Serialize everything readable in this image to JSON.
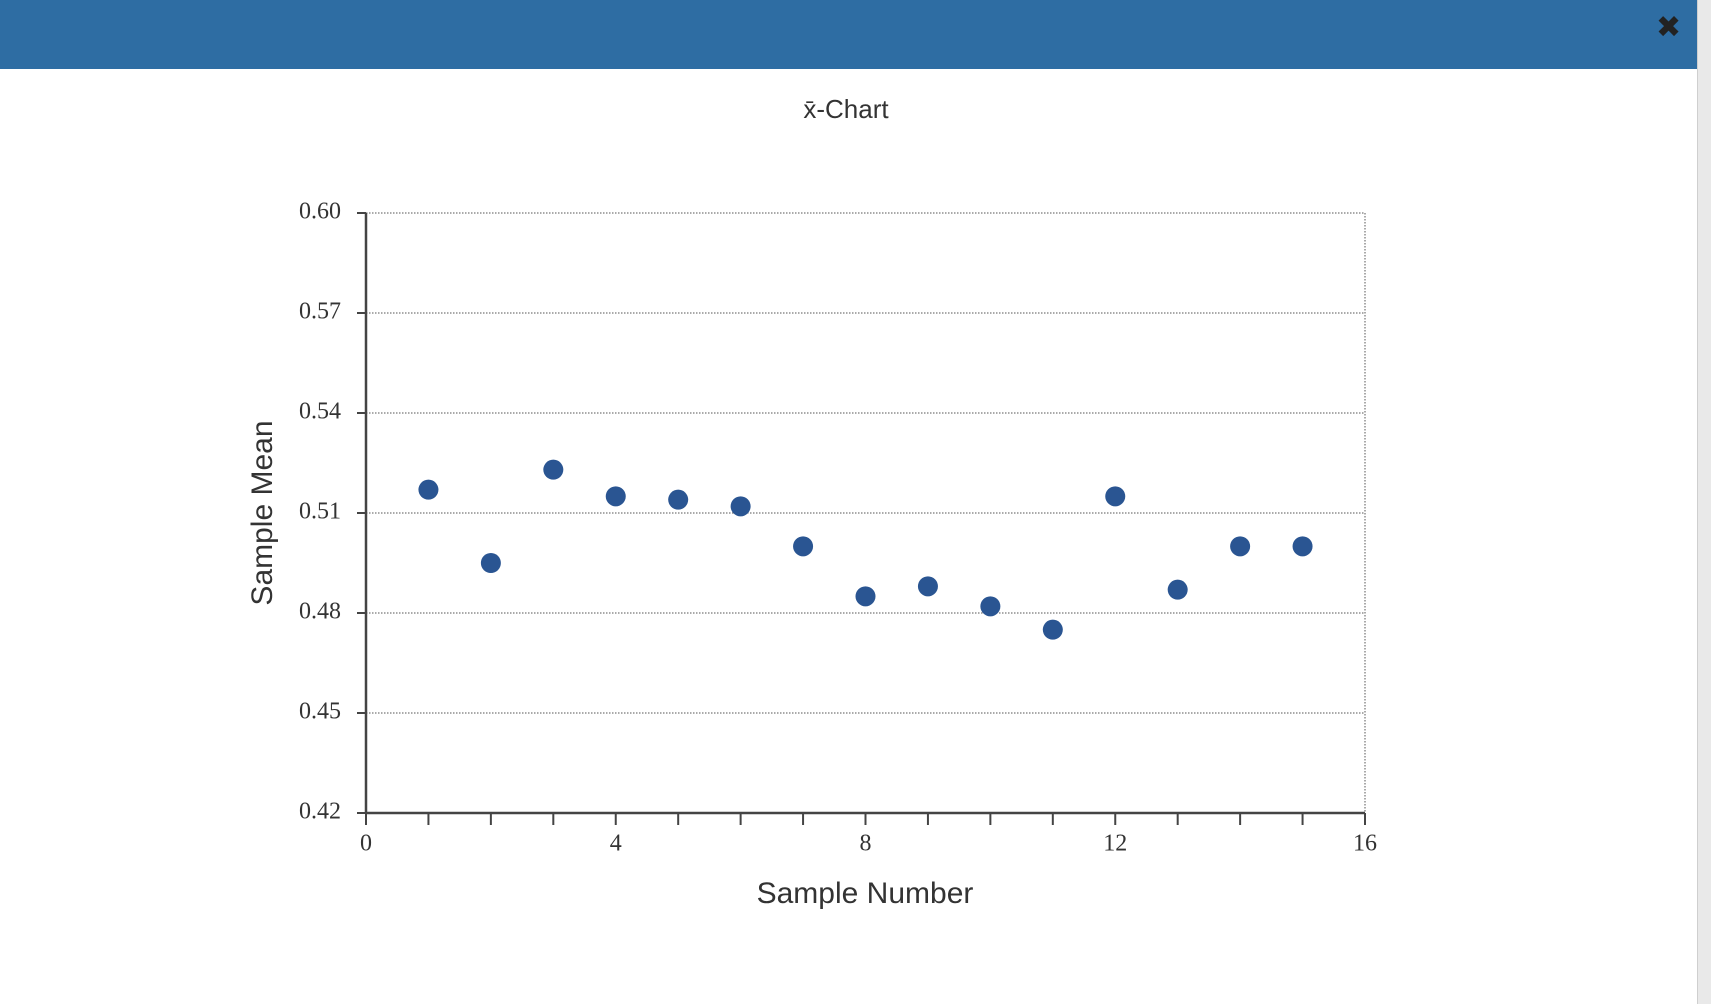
{
  "chart_data": {
    "type": "scatter",
    "title": "x̄-Chart",
    "x_label": "Sample Number",
    "y_label": "Sample Mean",
    "x": [
      1,
      2,
      3,
      4,
      5,
      6,
      7,
      8,
      9,
      10,
      11,
      12,
      13,
      14,
      15
    ],
    "values": [
      0.517,
      0.495,
      0.523,
      0.515,
      0.514,
      0.512,
      0.5,
      0.485,
      0.488,
      0.482,
      0.475,
      0.515,
      0.487,
      0.5,
      0.5
    ],
    "color": "#2a5592",
    "xlim": [
      0,
      16
    ],
    "xticks": [
      0,
      4,
      8,
      12,
      16
    ],
    "xminorticks": [
      1,
      2,
      3,
      5,
      6,
      7,
      9,
      10,
      11,
      13,
      14,
      15
    ],
    "ylim": [
      0.42,
      0.6
    ],
    "yticks": [
      {
        "value": 0.42,
        "label": "0.42"
      },
      {
        "value": 0.45,
        "label": "0.45"
      },
      {
        "value": 0.48,
        "label": "0.48"
      },
      {
        "value": 0.51,
        "label": "0.51"
      },
      {
        "value": 0.54,
        "label": "0.54"
      },
      {
        "value": 0.57,
        "label": "0.57"
      },
      {
        "value": 0.6,
        "label": "0.60"
      }
    ],
    "grid": true
  }
}
